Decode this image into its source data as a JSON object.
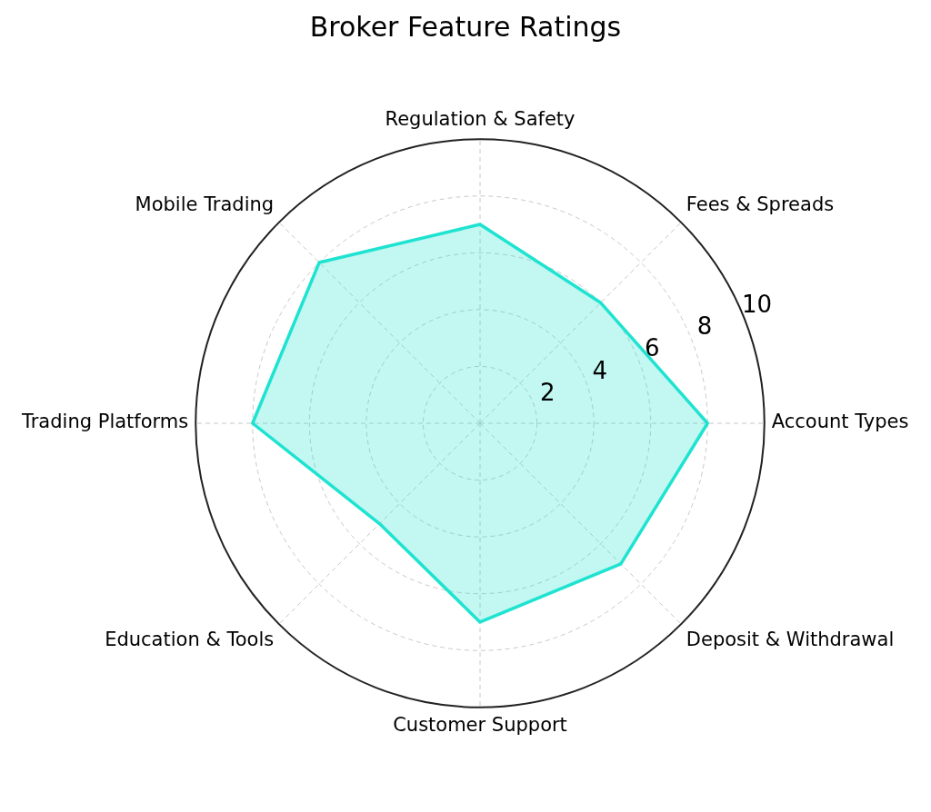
{
  "chart_data": {
    "type": "radar",
    "title": "Broker Feature Ratings",
    "categories": [
      "Regulation & Safety",
      "Fees & Spreads",
      "Account Types",
      "Deposit & Withdrawal",
      "Customer Support",
      "Education & Tools",
      "Trading Platforms",
      "Mobile Trading"
    ],
    "series": [
      {
        "color": "#1ee3d0",
        "values": [
          7,
          6,
          8,
          7,
          7,
          5,
          8,
          8
        ]
      }
    ],
    "ylim": [
      0,
      10
    ],
    "yticks": [
      2,
      4,
      6,
      8,
      10
    ],
    "grid": true,
    "legend": false,
    "marker": "none",
    "line_style": "solid"
  }
}
